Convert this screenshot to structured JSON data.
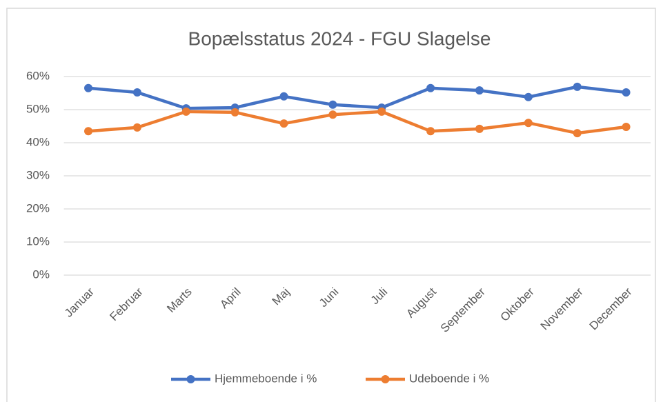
{
  "chart_data": {
    "type": "line",
    "title": "Bopælsstatus 2024 - FGU Slagelse",
    "categories": [
      "Januar",
      "Februar",
      "Marts",
      "April",
      "Maj",
      "Juni",
      "Juli",
      "August",
      "September",
      "Oktober",
      "November",
      "December"
    ],
    "series": [
      {
        "name": "Hjemmeboende i %",
        "color": "#4472c4",
        "values": [
          56.5,
          55.2,
          50.4,
          50.6,
          54.0,
          51.5,
          50.6,
          56.5,
          55.8,
          53.8,
          56.9,
          55.2
        ]
      },
      {
        "name": "Udeboende i %",
        "color": "#ed7d31",
        "values": [
          43.5,
          44.6,
          49.4,
          49.2,
          45.8,
          48.5,
          49.4,
          43.5,
          44.2,
          46.0,
          42.9,
          44.8
        ]
      }
    ],
    "ylim": [
      0,
      60
    ],
    "yticks": [
      {
        "value": 0,
        "label": "0%"
      },
      {
        "value": 10,
        "label": "10%"
      },
      {
        "value": 20,
        "label": "20%"
      },
      {
        "value": 30,
        "label": "30%"
      },
      {
        "value": 40,
        "label": "40%"
      },
      {
        "value": 50,
        "label": "50%"
      },
      {
        "value": 60,
        "label": "60%"
      }
    ],
    "grid": true,
    "legend": "bottom"
  }
}
